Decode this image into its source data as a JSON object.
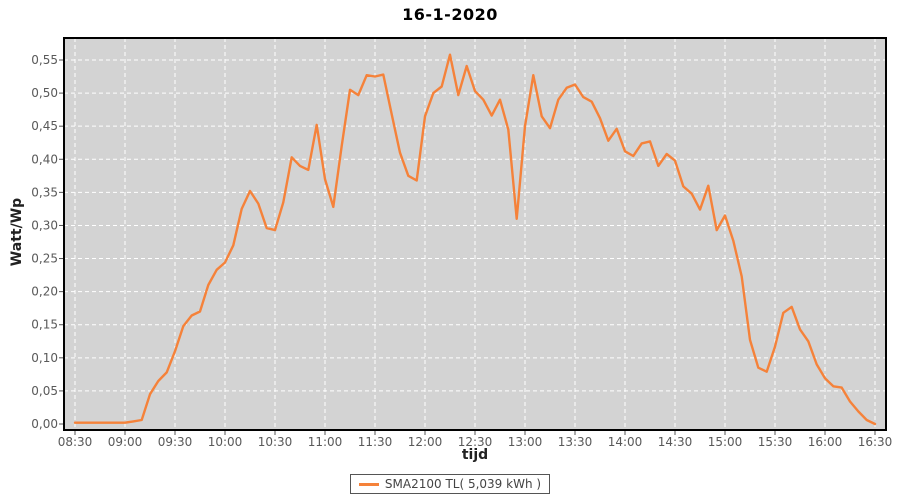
{
  "colors": {
    "line": "#f5823a",
    "plot_bg": "#d3d3d3",
    "grid": "#ffffff",
    "border": "#000000",
    "tick": "#555555",
    "tick_text": "#595959",
    "axis_text": "#222222",
    "title_text": "#000000",
    "legend_border": "#555555",
    "legend_text": "#444444"
  },
  "legend": {
    "label": "SMA2100 TL( 5,039 kWh )"
  },
  "chart_data": {
    "type": "line",
    "title": "16-1-2020",
    "xlabel": "tijd",
    "ylabel": "Watt/Wp",
    "ylim": [
      0,
      0.55
    ],
    "grid": true,
    "legend_position": "bottom",
    "y_ticks": [
      "0,00",
      "0,05",
      "0,10",
      "0,15",
      "0,20",
      "0,25",
      "0,30",
      "0,35",
      "0,40",
      "0,45",
      "0,50",
      "0,55"
    ],
    "x_ticks": [
      "08:30",
      "09:00",
      "09:30",
      "10:00",
      "10:30",
      "11:00",
      "11:30",
      "12:00",
      "12:30",
      "13:00",
      "13:30",
      "14:00",
      "14:30",
      "15:00",
      "15:30",
      "16:00",
      "16:30"
    ],
    "series": [
      {
        "name": "SMA2100 TL( 5,039 kWh )",
        "x": [
          "08:30",
          "08:35",
          "08:40",
          "08:45",
          "08:50",
          "08:55",
          "09:00",
          "09:05",
          "09:10",
          "09:15",
          "09:20",
          "09:25",
          "09:30",
          "09:35",
          "09:40",
          "09:45",
          "09:50",
          "09:55",
          "10:00",
          "10:05",
          "10:10",
          "10:15",
          "10:20",
          "10:25",
          "10:30",
          "10:35",
          "10:40",
          "10:45",
          "10:50",
          "10:55",
          "11:00",
          "11:05",
          "11:10",
          "11:15",
          "11:20",
          "11:25",
          "11:30",
          "11:35",
          "11:40",
          "11:45",
          "11:50",
          "11:55",
          "12:00",
          "12:05",
          "12:10",
          "12:15",
          "12:20",
          "12:25",
          "12:30",
          "12:35",
          "12:40",
          "12:45",
          "12:50",
          "12:55",
          "13:00",
          "13:05",
          "13:10",
          "13:15",
          "13:20",
          "13:25",
          "13:30",
          "13:35",
          "13:40",
          "13:45",
          "13:50",
          "13:55",
          "14:00",
          "14:05",
          "14:10",
          "14:15",
          "14:20",
          "14:25",
          "14:30",
          "14:35",
          "14:40",
          "14:45",
          "14:50",
          "14:55",
          "15:00",
          "15:05",
          "15:10",
          "15:15",
          "15:20",
          "15:25",
          "15:30",
          "15:35",
          "15:40",
          "15:45",
          "15:50",
          "15:55",
          "16:00",
          "16:05",
          "16:10",
          "16:15",
          "16:20",
          "16:25",
          "16:30"
        ],
        "values": [
          0.002,
          0.002,
          0.002,
          0.002,
          0.002,
          0.002,
          0.002,
          0.004,
          0.006,
          0.045,
          0.065,
          0.078,
          0.11,
          0.148,
          0.164,
          0.17,
          0.21,
          0.233,
          0.244,
          0.27,
          0.325,
          0.352,
          0.333,
          0.296,
          0.293,
          0.335,
          0.403,
          0.39,
          0.384,
          0.452,
          0.37,
          0.328,
          0.42,
          0.505,
          0.497,
          0.527,
          0.525,
          0.528,
          0.468,
          0.41,
          0.375,
          0.368,
          0.465,
          0.5,
          0.51,
          0.558,
          0.497,
          0.541,
          0.503,
          0.49,
          0.466,
          0.49,
          0.445,
          0.31,
          0.45,
          0.527,
          0.465,
          0.447,
          0.49,
          0.508,
          0.513,
          0.494,
          0.487,
          0.462,
          0.428,
          0.446,
          0.412,
          0.405,
          0.424,
          0.427,
          0.39,
          0.408,
          0.398,
          0.359,
          0.348,
          0.324,
          0.36,
          0.293,
          0.315,
          0.277,
          0.223,
          0.127,
          0.085,
          0.079,
          0.117,
          0.168,
          0.177,
          0.143,
          0.125,
          0.09,
          0.069,
          0.057,
          0.055,
          0.034,
          0.019,
          0.006,
          0.0
        ]
      }
    ]
  }
}
